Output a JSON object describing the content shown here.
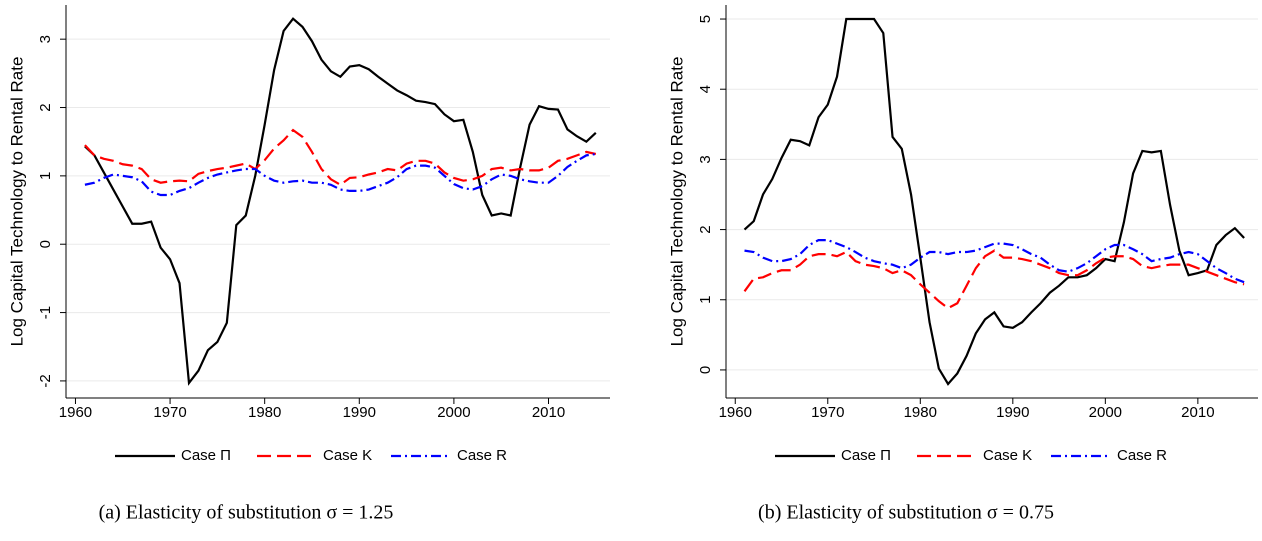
{
  "chart_data": [
    {
      "type": "line",
      "caption": "(a) Elasticity of substitution σ = 1.25",
      "ylabel": "Log Capital Technology to Rental Rate",
      "x": [
        1961,
        1962,
        1963,
        1964,
        1965,
        1966,
        1967,
        1968,
        1969,
        1970,
        1971,
        1972,
        1973,
        1974,
        1975,
        1976,
        1977,
        1978,
        1979,
        1980,
        1981,
        1982,
        1983,
        1984,
        1985,
        1986,
        1987,
        1988,
        1989,
        1990,
        1991,
        1992,
        1993,
        1994,
        1995,
        1996,
        1997,
        1998,
        1999,
        2000,
        2001,
        2002,
        2003,
        2004,
        2005,
        2006,
        2007,
        2008,
        2009,
        2010,
        2011,
        2012,
        2013,
        2014,
        2015
      ],
      "xlim": [
        1959,
        2016.5
      ],
      "xticks": [
        1960,
        1970,
        1980,
        1990,
        2000,
        2010
      ],
      "ylim": [
        -2.25,
        3.5
      ],
      "yticks": [
        -2,
        -1,
        0,
        1,
        2,
        3
      ],
      "grid": true,
      "series": [
        {
          "name": "Case Π",
          "color": "#000000",
          "dash": "solid",
          "values": [
            1.43,
            1.3,
            1.05,
            0.8,
            0.55,
            0.3,
            0.3,
            0.33,
            -0.05,
            -0.22,
            -0.57,
            -2.03,
            -1.85,
            -1.55,
            -1.43,
            -1.15,
            0.28,
            0.42,
            1.0,
            1.75,
            2.55,
            3.12,
            3.3,
            3.18,
            2.97,
            2.7,
            2.53,
            2.45,
            2.6,
            2.62,
            2.56,
            2.45,
            2.35,
            2.25,
            2.18,
            2.1,
            2.08,
            2.05,
            1.9,
            1.8,
            1.82,
            1.35,
            0.72,
            0.42,
            0.45,
            0.42,
            1.12,
            1.75,
            2.02,
            1.98,
            1.97,
            1.68,
            1.58,
            1.5,
            1.63
          ]
        },
        {
          "name": "Case K",
          "color": "#ff0000",
          "dash": "dashed",
          "values": [
            1.45,
            1.3,
            1.25,
            1.22,
            1.17,
            1.15,
            1.1,
            0.95,
            0.9,
            0.92,
            0.93,
            0.92,
            1.03,
            1.07,
            1.1,
            1.12,
            1.15,
            1.18,
            1.1,
            1.23,
            1.4,
            1.52,
            1.67,
            1.57,
            1.35,
            1.1,
            0.95,
            0.87,
            0.97,
            0.98,
            1.02,
            1.05,
            1.1,
            1.08,
            1.18,
            1.22,
            1.22,
            1.18,
            1.05,
            0.97,
            0.93,
            0.95,
            1.0,
            1.1,
            1.12,
            1.08,
            1.1,
            1.08,
            1.08,
            1.12,
            1.22,
            1.25,
            1.3,
            1.35,
            1.32
          ]
        },
        {
          "name": "Case R",
          "color": "#0000ff",
          "dash": "dashdot",
          "values": [
            0.87,
            0.9,
            0.97,
            1.02,
            1.0,
            0.98,
            0.92,
            0.77,
            0.72,
            0.72,
            0.78,
            0.82,
            0.9,
            0.97,
            1.02,
            1.05,
            1.08,
            1.1,
            1.1,
            1.0,
            0.93,
            0.9,
            0.92,
            0.93,
            0.9,
            0.9,
            0.87,
            0.8,
            0.78,
            0.78,
            0.8,
            0.85,
            0.9,
            0.98,
            1.1,
            1.15,
            1.15,
            1.12,
            1.0,
            0.88,
            0.82,
            0.8,
            0.85,
            0.95,
            1.02,
            1.0,
            0.95,
            0.92,
            0.9,
            0.9,
            1.0,
            1.13,
            1.22,
            1.3,
            1.32
          ]
        }
      ]
    },
    {
      "type": "line",
      "caption": "(b) Elasticity of substitution σ = 0.75",
      "ylabel": "Log Capital Technology to Rental Rate",
      "x": [
        1961,
        1962,
        1963,
        1964,
        1965,
        1966,
        1967,
        1968,
        1969,
        1970,
        1971,
        1972,
        1973,
        1974,
        1975,
        1976,
        1977,
        1978,
        1979,
        1980,
        1981,
        1982,
        1983,
        1984,
        1985,
        1986,
        1987,
        1988,
        1989,
        1990,
        1991,
        1992,
        1993,
        1994,
        1995,
        1996,
        1997,
        1998,
        1999,
        2000,
        2001,
        2002,
        2003,
        2004,
        2005,
        2006,
        2007,
        2008,
        2009,
        2010,
        2011,
        2012,
        2013,
        2014,
        2015
      ],
      "xlim": [
        1959,
        2016.5
      ],
      "xticks": [
        1960,
        1970,
        1980,
        1990,
        2000,
        2010
      ],
      "ylim": [
        -0.4,
        5.2
      ],
      "yticks": [
        0,
        1,
        2,
        3,
        4,
        5
      ],
      "grid": true,
      "series": [
        {
          "name": "Case Π",
          "color": "#000000",
          "dash": "solid",
          "values": [
            2.0,
            2.12,
            2.5,
            2.72,
            3.02,
            3.28,
            3.26,
            3.2,
            3.6,
            3.78,
            4.18,
            5.0,
            5.0,
            5.0,
            5.0,
            4.8,
            3.32,
            3.15,
            2.5,
            1.6,
            0.68,
            0.02,
            -0.2,
            -0.05,
            0.2,
            0.52,
            0.72,
            0.82,
            0.62,
            0.6,
            0.68,
            0.82,
            0.95,
            1.1,
            1.2,
            1.32,
            1.32,
            1.35,
            1.45,
            1.58,
            1.55,
            2.1,
            2.8,
            3.12,
            3.1,
            3.12,
            2.35,
            1.7,
            1.35,
            1.38,
            1.42,
            1.78,
            1.92,
            2.02,
            1.88
          ]
        },
        {
          "name": "Case K",
          "color": "#ff0000",
          "dash": "dashed",
          "values": [
            1.12,
            1.3,
            1.32,
            1.38,
            1.42,
            1.42,
            1.5,
            1.62,
            1.65,
            1.65,
            1.62,
            1.68,
            1.55,
            1.5,
            1.48,
            1.45,
            1.38,
            1.42,
            1.35,
            1.22,
            1.1,
            0.98,
            0.88,
            0.95,
            1.2,
            1.45,
            1.62,
            1.7,
            1.6,
            1.6,
            1.58,
            1.55,
            1.5,
            1.45,
            1.38,
            1.35,
            1.35,
            1.42,
            1.52,
            1.6,
            1.62,
            1.62,
            1.58,
            1.48,
            1.45,
            1.48,
            1.5,
            1.5,
            1.5,
            1.45,
            1.4,
            1.35,
            1.3,
            1.25,
            1.22
          ]
        },
        {
          "name": "Case R",
          "color": "#0000ff",
          "dash": "dashdot",
          "values": [
            1.7,
            1.68,
            1.6,
            1.55,
            1.55,
            1.58,
            1.65,
            1.78,
            1.85,
            1.85,
            1.8,
            1.75,
            1.68,
            1.6,
            1.55,
            1.52,
            1.5,
            1.45,
            1.5,
            1.6,
            1.68,
            1.68,
            1.65,
            1.68,
            1.68,
            1.7,
            1.75,
            1.8,
            1.8,
            1.78,
            1.72,
            1.65,
            1.6,
            1.5,
            1.42,
            1.4,
            1.45,
            1.52,
            1.62,
            1.72,
            1.78,
            1.78,
            1.72,
            1.65,
            1.55,
            1.58,
            1.6,
            1.65,
            1.68,
            1.65,
            1.55,
            1.45,
            1.38,
            1.3,
            1.25
          ]
        }
      ]
    }
  ]
}
